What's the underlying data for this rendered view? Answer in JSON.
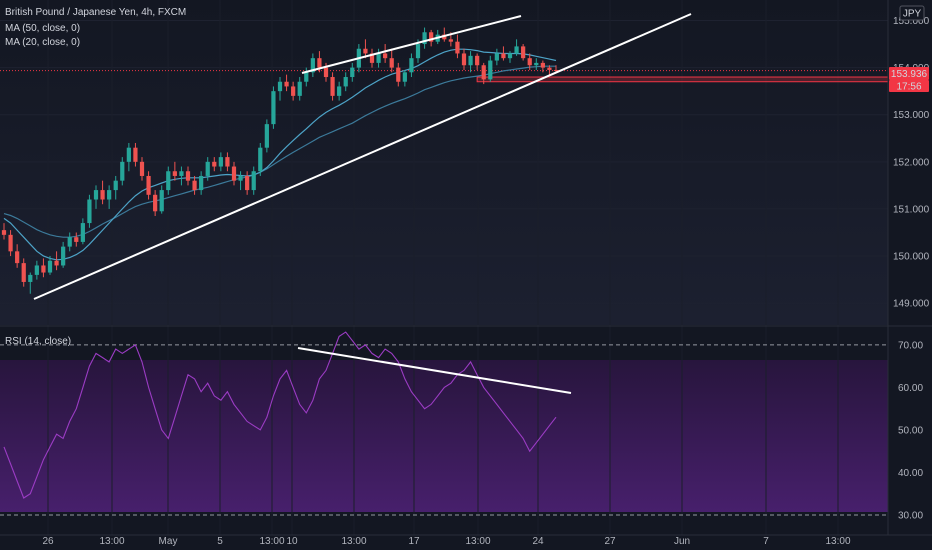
{
  "header": {
    "symbol_title": "British Pound / Japanese Yen, 4h, FXCM",
    "ma50_label": "MA (50, close, 0)",
    "ma20_label": "MA (20, close, 0)",
    "currency_badge": "JPY"
  },
  "rsi_panel": {
    "label": "RSI (14, close)"
  },
  "price_badges": {
    "last_price": "153.936",
    "countdown": "17:56"
  },
  "colors": {
    "background": "#131722",
    "up_candle": "#26a69a",
    "down_candle": "#ef5350",
    "ma50": "#3c7a9a",
    "ma20": "#4da3c7",
    "rsi_line": "#9b3cc4",
    "rsi_band": "#2a1540",
    "trendline": "#ffffff",
    "price_badge": "#f23645",
    "support_box": "#f23645"
  },
  "chart_data": [
    {
      "type": "candlestick",
      "title": "British Pound / Japanese Yen, 4h, FXCM",
      "y_axis_ticks": [
        "155.000",
        "154.000",
        "153.000",
        "152.000",
        "151.000",
        "150.000",
        "149.000"
      ],
      "ylim": [
        148.6,
        155.35
      ],
      "x_axis_ticks": [
        "26",
        "13:00",
        "May",
        "5",
        "13:00",
        "10",
        "13:00",
        "17",
        "13:00",
        "24",
        "27",
        "Jun",
        "7",
        "13:00"
      ],
      "last_price": 153.936,
      "candles_ohlc": [
        [
          150.55,
          150.7,
          150.35,
          150.45
        ],
        [
          150.45,
          150.55,
          150.0,
          150.1
        ],
        [
          150.1,
          150.25,
          149.75,
          149.85
        ],
        [
          149.85,
          149.95,
          149.35,
          149.45
        ],
        [
          149.45,
          149.65,
          149.2,
          149.6
        ],
        [
          149.6,
          149.9,
          149.5,
          149.8
        ],
        [
          149.8,
          149.95,
          149.55,
          149.65
        ],
        [
          149.65,
          150.0,
          149.6,
          149.9
        ],
        [
          149.9,
          150.1,
          149.7,
          149.8
        ],
        [
          149.8,
          150.3,
          149.75,
          150.2
        ],
        [
          150.2,
          150.5,
          150.1,
          150.4
        ],
        [
          150.4,
          150.5,
          150.2,
          150.3
        ],
        [
          150.3,
          150.8,
          150.25,
          150.7
        ],
        [
          150.7,
          151.3,
          150.6,
          151.2
        ],
        [
          151.2,
          151.5,
          151.0,
          151.4
        ],
        [
          151.4,
          151.6,
          151.1,
          151.2
        ],
        [
          151.2,
          151.5,
          151.0,
          151.4
        ],
        [
          151.4,
          151.7,
          151.2,
          151.6
        ],
        [
          151.6,
          152.1,
          151.5,
          152.0
        ],
        [
          152.0,
          152.4,
          151.8,
          152.3
        ],
        [
          152.3,
          152.4,
          151.9,
          152.0
        ],
        [
          152.0,
          152.1,
          151.6,
          151.7
        ],
        [
          151.7,
          151.8,
          151.2,
          151.3
        ],
        [
          151.3,
          151.4,
          150.85,
          150.95
        ],
        [
          150.95,
          151.5,
          150.9,
          151.4
        ],
        [
          151.4,
          151.9,
          151.3,
          151.8
        ],
        [
          151.8,
          152.0,
          151.6,
          151.7
        ],
        [
          151.7,
          151.9,
          151.5,
          151.8
        ],
        [
          151.8,
          151.9,
          151.5,
          151.6
        ],
        [
          151.6,
          151.7,
          151.3,
          151.4
        ],
        [
          151.4,
          151.8,
          151.3,
          151.7
        ],
        [
          151.7,
          152.1,
          151.6,
          152.0
        ],
        [
          152.0,
          152.1,
          151.8,
          151.9
        ],
        [
          151.9,
          152.2,
          151.8,
          152.1
        ],
        [
          152.1,
          152.2,
          151.8,
          151.9
        ],
        [
          151.9,
          152.0,
          151.5,
          151.6
        ],
        [
          151.6,
          151.8,
          151.4,
          151.7
        ],
        [
          151.7,
          151.8,
          151.3,
          151.4
        ],
        [
          151.4,
          151.9,
          151.3,
          151.8
        ],
        [
          151.8,
          152.4,
          151.7,
          152.3
        ],
        [
          152.3,
          152.9,
          152.2,
          152.8
        ],
        [
          152.8,
          153.6,
          152.7,
          153.5
        ],
        [
          153.5,
          153.8,
          153.3,
          153.7
        ],
        [
          153.7,
          153.85,
          153.5,
          153.6
        ],
        [
          153.6,
          153.7,
          153.3,
          153.4
        ],
        [
          153.4,
          153.8,
          153.3,
          153.7
        ],
        [
          153.7,
          154.0,
          153.6,
          153.9
        ],
        [
          153.9,
          154.3,
          153.8,
          154.2
        ],
        [
          154.2,
          154.35,
          153.9,
          154.0
        ],
        [
          154.0,
          154.1,
          153.7,
          153.8
        ],
        [
          153.8,
          153.9,
          153.3,
          153.4
        ],
        [
          153.4,
          153.7,
          153.3,
          153.6
        ],
        [
          153.6,
          153.9,
          153.5,
          153.8
        ],
        [
          153.8,
          154.1,
          153.7,
          154.0
        ],
        [
          154.0,
          154.5,
          153.9,
          154.4
        ],
        [
          154.4,
          154.6,
          154.2,
          154.3
        ],
        [
          154.3,
          154.4,
          154.0,
          154.1
        ],
        [
          154.1,
          154.4,
          154.0,
          154.3
        ],
        [
          154.3,
          154.5,
          154.1,
          154.2
        ],
        [
          154.2,
          154.4,
          153.9,
          154.0
        ],
        [
          154.0,
          154.1,
          153.6,
          153.7
        ],
        [
          153.7,
          153.95,
          153.6,
          153.9
        ],
        [
          153.9,
          154.3,
          153.8,
          154.2
        ],
        [
          154.2,
          154.6,
          154.1,
          154.5
        ],
        [
          154.5,
          154.85,
          154.4,
          154.75
        ],
        [
          154.75,
          154.8,
          154.45,
          154.55
        ],
        [
          154.55,
          154.8,
          154.5,
          154.7
        ],
        [
          154.7,
          154.85,
          154.55,
          154.6
        ],
        [
          154.6,
          154.75,
          154.45,
          154.55
        ],
        [
          154.55,
          154.7,
          154.2,
          154.3
        ],
        [
          154.3,
          154.4,
          153.95,
          154.05
        ],
        [
          154.05,
          154.35,
          153.9,
          154.25
        ],
        [
          154.25,
          154.3,
          153.95,
          154.05
        ],
        [
          154.05,
          154.1,
          153.65,
          153.75
        ],
        [
          153.75,
          154.25,
          153.7,
          154.15
        ],
        [
          154.15,
          154.4,
          154.05,
          154.3
        ],
        [
          154.3,
          154.45,
          154.15,
          154.2
        ],
        [
          154.2,
          154.35,
          154.1,
          154.3
        ],
        [
          154.3,
          154.6,
          154.25,
          154.45
        ],
        [
          154.45,
          154.5,
          154.15,
          154.2
        ],
        [
          154.2,
          154.3,
          153.95,
          154.05
        ],
        [
          154.05,
          154.2,
          153.95,
          154.1
        ],
        [
          154.1,
          154.15,
          153.9,
          154.0
        ],
        [
          154.0,
          154.05,
          153.85,
          153.95
        ],
        [
          153.95,
          154.05,
          153.88,
          153.936
        ]
      ],
      "series": [
        {
          "name": "MA (50, close, 0)",
          "values": [
            150.9,
            150.86,
            150.8,
            150.72,
            150.64,
            150.56,
            150.5,
            150.45,
            150.42,
            150.4,
            150.4,
            150.42,
            150.46,
            150.52,
            150.6,
            150.68,
            150.75,
            150.82,
            150.9,
            150.98,
            151.05,
            151.1,
            151.14,
            151.17,
            151.2,
            151.24,
            151.28,
            151.32,
            151.36,
            151.4,
            151.43,
            151.46,
            151.5,
            151.54,
            151.58,
            151.62,
            151.65,
            151.68,
            151.72,
            151.78,
            151.85,
            151.94,
            152.03,
            152.12,
            152.2,
            152.28,
            152.36,
            152.44,
            152.52,
            152.58,
            152.64,
            152.7,
            152.76,
            152.82,
            152.9,
            152.98,
            153.05,
            153.12,
            153.18,
            153.24,
            153.29,
            153.34,
            153.4,
            153.46,
            153.53,
            153.58,
            153.63,
            153.68,
            153.72,
            153.75,
            153.78,
            153.8,
            153.82,
            153.84,
            153.87,
            153.9,
            153.93,
            153.95,
            153.97,
            153.99,
            154.01,
            154.02,
            154.03,
            154.03,
            154.03
          ]
        },
        {
          "name": "MA (20, close, 0)",
          "values": [
            150.8,
            150.7,
            150.55,
            150.4,
            150.25,
            150.1,
            150.0,
            149.95,
            149.92,
            149.93,
            149.97,
            150.03,
            150.12,
            150.25,
            150.4,
            150.55,
            150.7,
            150.85,
            151.0,
            151.15,
            151.28,
            151.38,
            151.45,
            151.5,
            151.55,
            151.6,
            151.63,
            151.65,
            151.66,
            151.66,
            151.66,
            151.68,
            151.7,
            151.72,
            151.73,
            151.72,
            151.71,
            151.7,
            151.72,
            151.78,
            151.88,
            152.02,
            152.18,
            152.32,
            152.45,
            152.58,
            152.7,
            152.83,
            152.95,
            153.05,
            153.13,
            153.2,
            153.28,
            153.37,
            153.47,
            153.57,
            153.65,
            153.73,
            153.8,
            153.86,
            153.9,
            153.94,
            153.98,
            154.04,
            154.12,
            154.2,
            154.27,
            154.33,
            154.37,
            154.39,
            154.39,
            154.38,
            154.36,
            154.33,
            154.32,
            154.31,
            154.3,
            154.3,
            154.3,
            154.29,
            154.27,
            154.24,
            154.21,
            154.18,
            154.15
          ]
        }
      ],
      "trendlines": "rising wedge: upper line across highs, lower line across lows",
      "support_zone": [
        153.7,
        153.8
      ]
    },
    {
      "type": "line",
      "title": "RSI (14, close)",
      "y_axis_ticks": [
        "70.00",
        "60.00",
        "50.00",
        "40.00",
        "30.00"
      ],
      "ylim": [
        26,
        73.5
      ],
      "overbought": 70,
      "oversold": 30,
      "series": [
        {
          "name": "RSI (14, close)",
          "values": [
            46,
            42,
            38,
            34,
            35,
            39,
            43,
            46,
            49,
            48,
            52,
            55,
            60,
            65,
            68,
            67,
            66,
            69,
            68,
            69,
            70,
            66,
            60,
            55,
            50,
            48,
            53,
            58,
            63,
            62,
            59,
            61,
            58,
            57,
            59,
            56,
            54,
            52,
            51,
            50,
            53,
            58,
            62,
            64,
            60,
            56,
            54,
            57,
            62,
            64,
            68,
            72,
            73,
            71,
            69,
            70,
            68,
            67,
            69,
            68,
            66,
            62,
            59,
            57,
            55,
            56,
            58,
            60,
            61,
            63,
            64,
            66,
            63,
            60,
            58,
            56,
            54,
            52,
            50,
            48,
            45,
            47,
            49,
            51,
            53
          ]
        }
      ],
      "trendline": "descending line connecting RSI highs"
    }
  ]
}
